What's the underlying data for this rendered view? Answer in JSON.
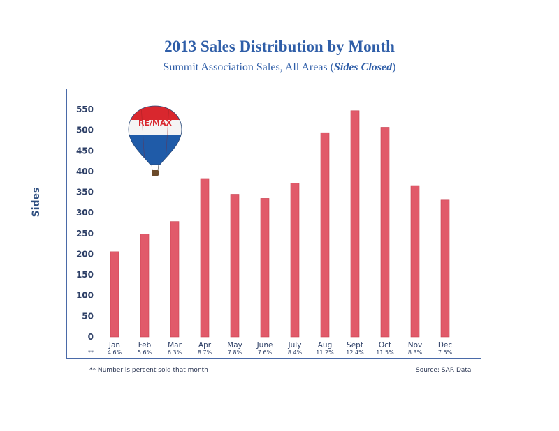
{
  "title": "2013 Sales Distribution by Month",
  "subtitle_prefix": "Summit Association Sales, All Areas (",
  "subtitle_emph": "Sides Closed",
  "subtitle_suffix": ")",
  "footnote": "** Number is percent sold that month",
  "source": "Source: SAR Data",
  "logo_text": "RE/MAX",
  "colors": {
    "bar": "#e15a6a",
    "bar_edge": "#c9404f",
    "text": "#2f5ea8",
    "frame": "#4a6aa8"
  },
  "chart_data": {
    "type": "bar",
    "title": "2013 Sales Distribution by Month",
    "subtitle": "Summit Association Sales, All Areas (Sides Closed)",
    "xlabel": "",
    "ylabel": "Sides",
    "ylim": [
      0,
      550
    ],
    "yticks": [
      0,
      50,
      100,
      150,
      200,
      250,
      300,
      350,
      400,
      450,
      500,
      550
    ],
    "grid": false,
    "categories": [
      "Jan",
      "Feb",
      "Mar",
      "Apr",
      "May",
      "June",
      "July",
      "Aug",
      "Sept",
      "Oct",
      "Nov",
      "Dec"
    ],
    "values": [
      206,
      249,
      279,
      383,
      345,
      335,
      372,
      494,
      547,
      507,
      366,
      331
    ],
    "percent_marker": "**",
    "percent_labels": [
      "4.6%",
      "5.6%",
      "6.3%",
      "8.7%",
      "7.8%",
      "7.6%",
      "8.4%",
      "11.2%",
      "12.4%",
      "11.5%",
      "8.3%",
      "7.5%"
    ]
  }
}
